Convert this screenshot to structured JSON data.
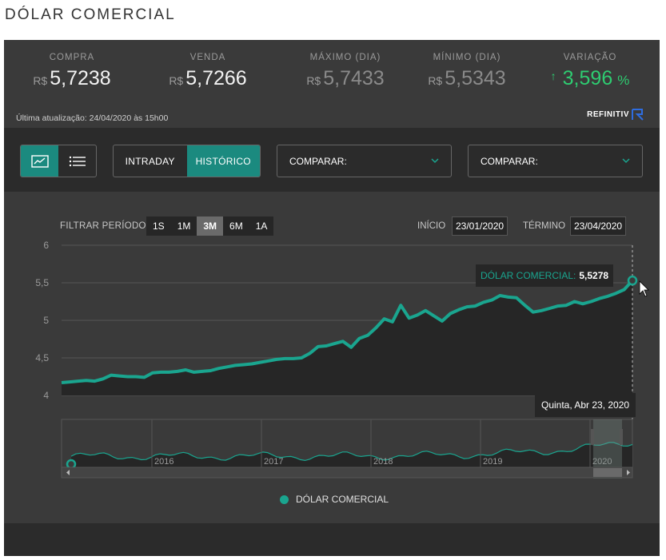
{
  "page": {
    "title": "DÓLAR COMERCIAL"
  },
  "stats": {
    "compra": {
      "label": "COMPRA",
      "currency": "R$",
      "value": "5,7238"
    },
    "venda": {
      "label": "VENDA",
      "currency": "R$",
      "value": "5,7266"
    },
    "maximo": {
      "label": "MÁXIMO (DIA)",
      "currency": "R$",
      "value": "5,7433"
    },
    "minimo": {
      "label": "MÍNIMO (DIA)",
      "currency": "R$",
      "value": "5,5343"
    },
    "variacao": {
      "label": "VARIAÇÃO",
      "arrow": "↑",
      "value": "3,596",
      "unit": "%"
    },
    "updated": "Última atualização: 24/04/2020 às 15h00",
    "provider": "REFINITIV"
  },
  "toolbar": {
    "view_chart_icon": "chart-icon",
    "view_list_icon": "list-icon",
    "intraday": "INTRADAY",
    "historico": "HISTÓRICO",
    "compare1": "COMPARAR:",
    "compare2": "COMPARAR:"
  },
  "filter": {
    "label": "FILTRAR PERÍODO",
    "buttons": [
      "1S",
      "1M",
      "3M",
      "6M",
      "1A"
    ],
    "active": "3M",
    "start_label": "INÍCIO",
    "start_value": "23/01/2020",
    "end_label": "TÉRMINO",
    "end_value": "23/04/2020"
  },
  "tooltips": {
    "series_name": "DÓLAR COMERCIAL:",
    "series_value": "5,5278",
    "date": "Quinta, Abr 23, 2020"
  },
  "legend": {
    "label": "DÓLAR COMERCIAL"
  },
  "colors": {
    "accent": "#1aa58f",
    "positive": "#2ecc71",
    "panel": "#3a3a3a",
    "dark": "#2b2b2b"
  },
  "chart_data": {
    "type": "area",
    "ylim": [
      4,
      6
    ],
    "yticks": [
      "6",
      "5,5",
      "5",
      "4,5",
      "4"
    ],
    "start_date": "23/01/2020",
    "end_date": "23/04/2020",
    "series": [
      {
        "name": "DÓLAR COMERCIAL",
        "values": [
          4.17,
          4.18,
          4.19,
          4.2,
          4.19,
          4.22,
          4.27,
          4.26,
          4.25,
          4.25,
          4.24,
          4.3,
          4.31,
          4.31,
          4.32,
          4.34,
          4.31,
          4.32,
          4.33,
          4.36,
          4.38,
          4.4,
          4.41,
          4.42,
          4.44,
          4.46,
          4.48,
          4.49,
          4.49,
          4.5,
          4.56,
          4.65,
          4.66,
          4.69,
          4.72,
          4.64,
          4.76,
          4.8,
          4.9,
          5.02,
          4.98,
          5.2,
          5.03,
          5.07,
          5.13,
          5.06,
          4.99,
          5.09,
          5.14,
          5.18,
          5.19,
          5.24,
          5.27,
          5.33,
          5.31,
          5.3,
          5.2,
          5.11,
          5.13,
          5.16,
          5.19,
          5.2,
          5.25,
          5.22,
          5.25,
          5.29,
          5.32,
          5.36,
          5.41,
          5.53
        ]
      }
    ],
    "navigator": {
      "x_labels": [
        "2016",
        "2017",
        "2018",
        "2019",
        "2020"
      ]
    }
  }
}
